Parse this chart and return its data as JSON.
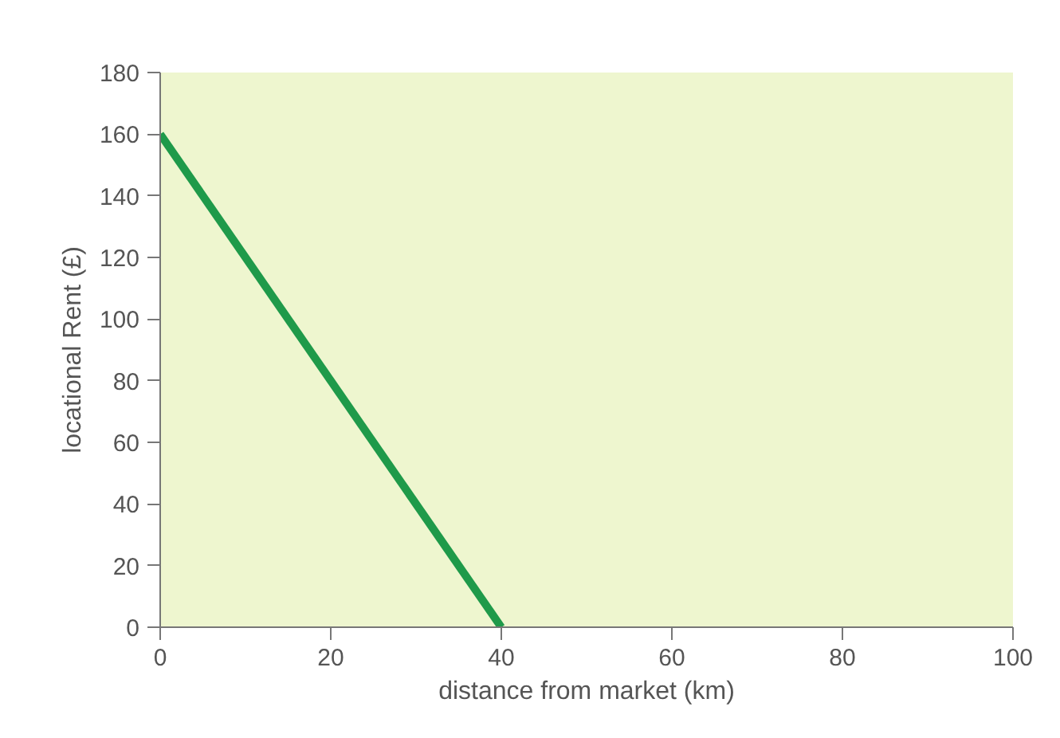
{
  "chart_data": {
    "type": "line",
    "xlabel": "distance from market (km)",
    "ylabel": "locational Rent (£)",
    "x": [
      0,
      40
    ],
    "series": [
      {
        "color": "#1f9a4a",
        "values": [
          160,
          0
        ]
      }
    ],
    "xlim": [
      0,
      100
    ],
    "ylim": [
      0,
      180
    ],
    "xticks": [
      0,
      20,
      40,
      60,
      80,
      100
    ],
    "yticks": [
      0,
      20,
      40,
      60,
      80,
      100,
      120,
      140,
      160,
      180
    ],
    "grid": false,
    "marker": "none",
    "line_style": "solid"
  }
}
